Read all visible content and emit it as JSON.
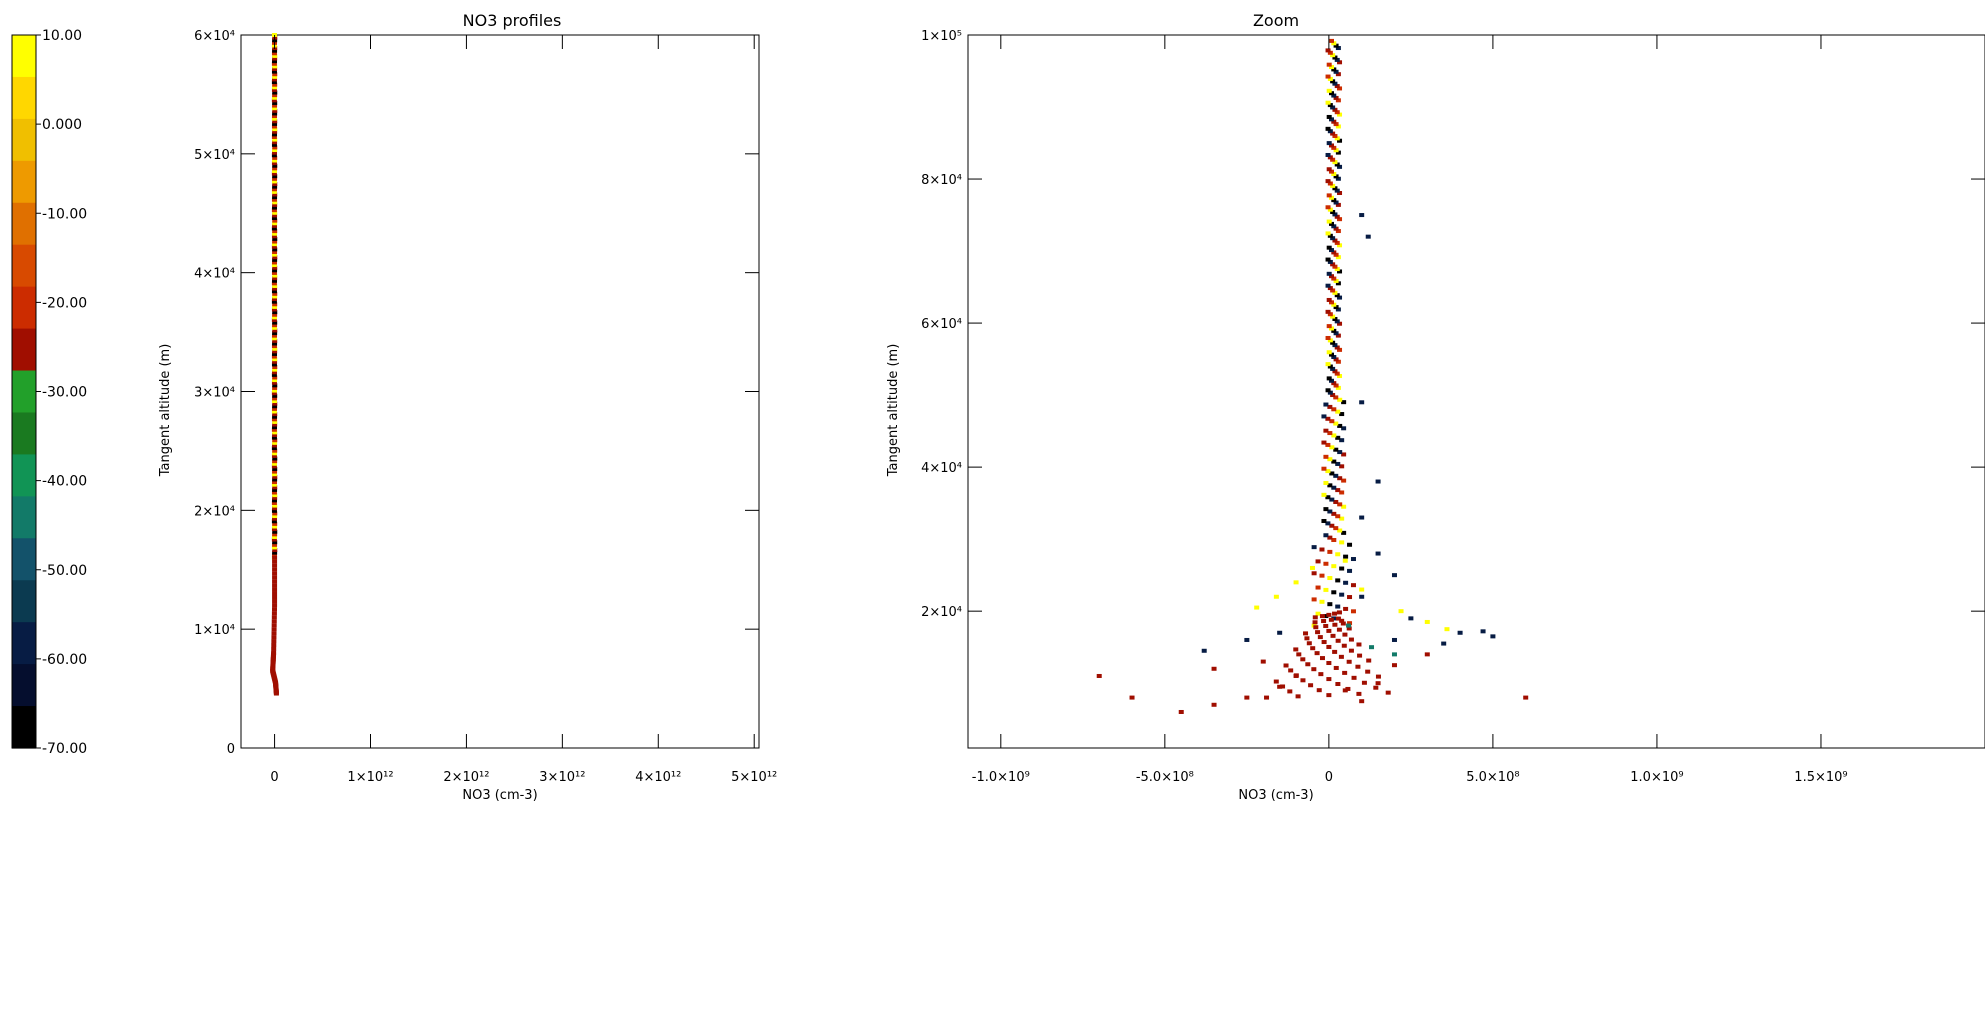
{
  "colorbar": {
    "ticks": [
      "10.00",
      "0.000",
      "-10.00",
      "-20.00",
      "-30.00",
      "-40.00",
      "-50.00",
      "-60.00",
      "-70.00"
    ],
    "bands": [
      "#ffff00",
      "#ffd700",
      "#f0bf00",
      "#ee9a00",
      "#e07000",
      "#d84a00",
      "#cc2c00",
      "#a00e00",
      "#22a02a",
      "#1a7a20",
      "#119455",
      "#127a68",
      "#13526a",
      "#0b3a50",
      "#071c44",
      "#050e2e",
      "#000000"
    ]
  },
  "chart_data": [
    {
      "type": "scatter",
      "title": "NO3 profiles",
      "xlabel": "NO3 (cm-3)",
      "ylabel": "Tangent altitude (m)",
      "xlim": [
        -350000000000.0,
        5050000000000.0
      ],
      "ylim": [
        0,
        60000
      ],
      "xticks": [
        0,
        1000000000000.0,
        2000000000000.0,
        3000000000000.0,
        4000000000000.0,
        5000000000000.0
      ],
      "xtick_labels": [
        "0",
        "1×10¹²",
        "2×10¹²",
        "3×10¹²",
        "4×10¹²",
        "5×10¹²"
      ],
      "yticks": [
        0,
        10000,
        20000,
        30000,
        40000,
        50000,
        60000
      ],
      "ytick_labels": [
        "0",
        "1×10⁴",
        "2×10⁴",
        "3×10⁴",
        "4×10⁴",
        "5×10⁴",
        "6×10⁴"
      ],
      "profile": {
        "upper": {
          "x": 0,
          "y_from": 16000,
          "y_to": 60000
        },
        "lower": [
          [
            0,
            16000
          ],
          [
            0,
            12000
          ],
          [
            -10000000000.0,
            8000
          ],
          [
            -20000000000.0,
            6500
          ],
          [
            10000000000.0,
            5500
          ],
          [
            20000000000.0,
            4500
          ]
        ]
      },
      "colors": [
        "#ffff00",
        "#cc2c00",
        "#000000",
        "#a00e00"
      ]
    },
    {
      "type": "scatter",
      "title": "Zoom",
      "xlabel": "NO3 (cm-3)",
      "ylabel": "Tangent altitude (m)",
      "xlim": [
        -1100000000.0,
        2000000000.0
      ],
      "ylim": [
        1000,
        100000
      ],
      "xticks": [
        -1000000000.0,
        -500000000.0,
        0,
        500000000.0,
        1000000000.0,
        1500000000.0
      ],
      "xtick_labels": [
        "-1.0×10⁹",
        "-5.0×10⁸",
        "0",
        "5.0×10⁸",
        "1.0×10⁹",
        "1.5×10⁹"
      ],
      "yticks": [
        20000,
        40000,
        60000,
        80000,
        100000
      ],
      "ytick_labels": [
        "2×10⁴",
        "4×10⁴",
        "6×10⁴",
        "8×10⁴",
        "1×10⁵"
      ],
      "points": [
        {
          "x": -700000000.0,
          "y": 11000,
          "c": "#a00e00"
        },
        {
          "x": -600000000.0,
          "y": 8000,
          "c": "#a00e00"
        },
        {
          "x": -450000000.0,
          "y": 6000,
          "c": "#a00e00"
        },
        {
          "x": -350000000.0,
          "y": 7000,
          "c": "#a00e00"
        },
        {
          "x": -250000000.0,
          "y": 8000,
          "c": "#a00e00"
        },
        {
          "x": -150000000.0,
          "y": 9500,
          "c": "#a00e00"
        },
        {
          "x": -100000000.0,
          "y": 11000,
          "c": "#a00e00"
        },
        {
          "x": 50000000.0,
          "y": 9000,
          "c": "#a00e00"
        },
        {
          "x": 100000000.0,
          "y": 7500,
          "c": "#a00e00"
        },
        {
          "x": 150000000.0,
          "y": 10000,
          "c": "#a00e00"
        },
        {
          "x": 600000000.0,
          "y": 8000,
          "c": "#a00e00"
        },
        {
          "x": -350000000.0,
          "y": 12000,
          "c": "#a00e00"
        },
        {
          "x": -200000000.0,
          "y": 13000,
          "c": "#a00e00"
        },
        {
          "x": 200000000.0,
          "y": 12500,
          "c": "#a00e00"
        },
        {
          "x": 300000000.0,
          "y": 14000,
          "c": "#a00e00"
        },
        {
          "x": -380000000.0,
          "y": 14500,
          "c": "#071c44"
        },
        {
          "x": -250000000.0,
          "y": 16000,
          "c": "#071c44"
        },
        {
          "x": -150000000.0,
          "y": 17000,
          "c": "#071c44"
        },
        {
          "x": 200000000.0,
          "y": 16000,
          "c": "#071c44"
        },
        {
          "x": 350000000.0,
          "y": 15500,
          "c": "#071c44"
        },
        {
          "x": 400000000.0,
          "y": 17000,
          "c": "#071c44"
        },
        {
          "x": 470000000.0,
          "y": 17200,
          "c": "#071c44"
        },
        {
          "x": 500000000.0,
          "y": 16500,
          "c": "#071c44"
        },
        {
          "x": 250000000.0,
          "y": 19000,
          "c": "#071c44"
        },
        {
          "x": 100000000.0,
          "y": 22000,
          "c": "#071c44"
        },
        {
          "x": 200000000.0,
          "y": 25000,
          "c": "#071c44"
        },
        {
          "x": 150000000.0,
          "y": 28000,
          "c": "#071c44"
        },
        {
          "x": 100000000.0,
          "y": 33000,
          "c": "#071c44"
        },
        {
          "x": 150000000.0,
          "y": 38000,
          "c": "#071c44"
        },
        {
          "x": 100000000.0,
          "y": 49000,
          "c": "#071c44"
        },
        {
          "x": 120000000.0,
          "y": 72000,
          "c": "#071c44"
        },
        {
          "x": 100000000.0,
          "y": 75000,
          "c": "#071c44"
        },
        {
          "x": 200000000.0,
          "y": 14000,
          "c": "#127a68"
        },
        {
          "x": 130000000.0,
          "y": 15000,
          "c": "#127a68"
        },
        {
          "x": 60000000.0,
          "y": 18000,
          "c": "#127a68"
        },
        {
          "x": -220000000.0,
          "y": 20500,
          "c": "#ffff00"
        },
        {
          "x": -160000000.0,
          "y": 22000,
          "c": "#ffff00"
        },
        {
          "x": -100000000.0,
          "y": 24000,
          "c": "#ffff00"
        },
        {
          "x": 100000000.0,
          "y": 23000,
          "c": "#ffff00"
        },
        {
          "x": 220000000.0,
          "y": 20000,
          "c": "#ffff00"
        },
        {
          "x": 300000000.0,
          "y": 18500,
          "c": "#ffff00"
        },
        {
          "x": 360000000.0,
          "y": 17500,
          "c": "#ffff00"
        },
        {
          "x": -50000000.0,
          "y": 26000,
          "c": "#ffff00"
        },
        {
          "x": 50000000.0,
          "y": 27000,
          "c": "#ffff00"
        }
      ],
      "colors": [
        "#ffff00",
        "#cc2c00",
        "#a00e00",
        "#071c44",
        "#000000"
      ]
    }
  ]
}
